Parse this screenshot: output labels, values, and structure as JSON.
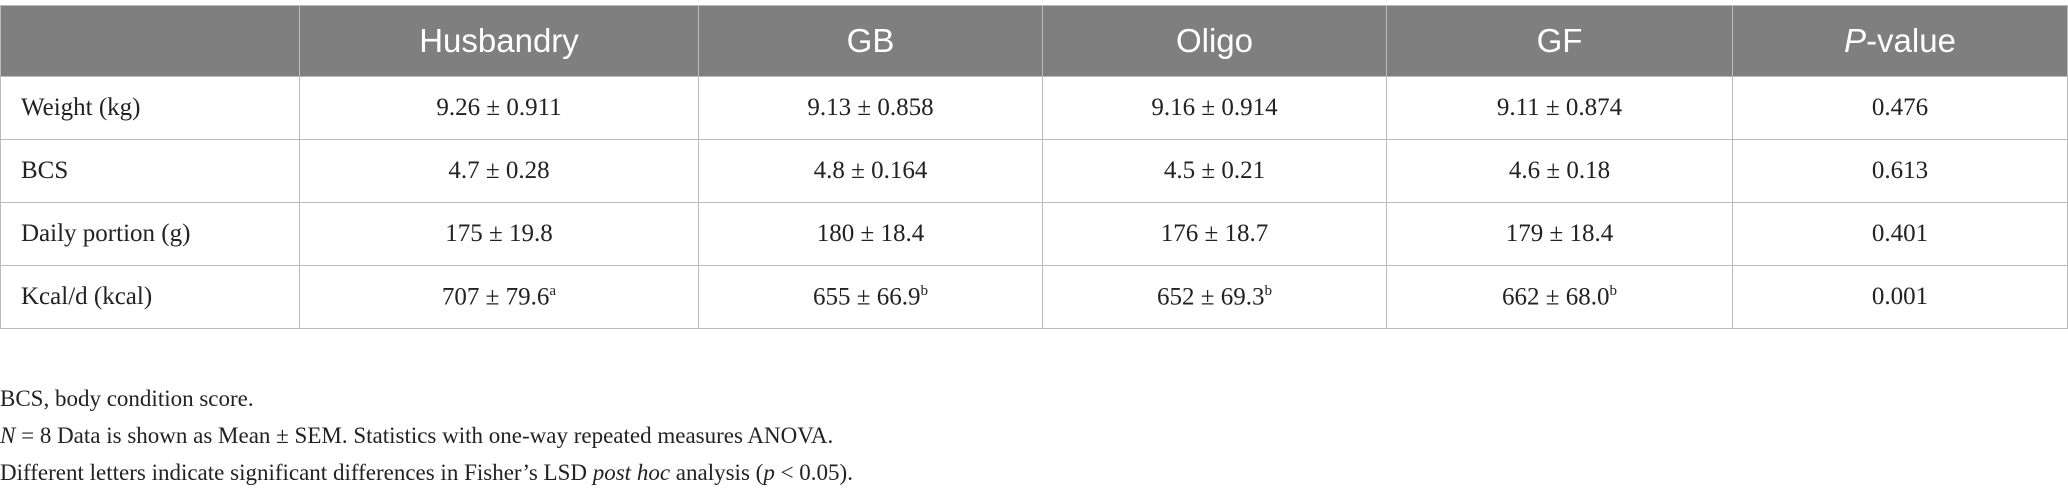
{
  "table": {
    "header": [
      [
        {
          "text": "Husbandry"
        }
      ],
      [
        {
          "text": "GB"
        }
      ],
      [
        {
          "text": "Oligo"
        }
      ],
      [
        {
          "text": "GF"
        }
      ],
      [
        {
          "text": "P",
          "italic": true
        },
        {
          "text": "-value"
        }
      ]
    ],
    "rows": [
      {
        "label": "Weight (kg)",
        "cells": [
          {
            "text": "9.26 ± 0.911"
          },
          {
            "text": "9.13 ± 0.858"
          },
          {
            "text": "9.16 ± 0.914"
          },
          {
            "text": "9.11 ± 0.874"
          },
          {
            "text": "0.476"
          }
        ]
      },
      {
        "label": "BCS",
        "cells": [
          {
            "text": "4.7 ± 0.28"
          },
          {
            "text": "4.8 ± 0.164"
          },
          {
            "text": "4.5 ± 0.21"
          },
          {
            "text": "4.6 ± 0.18"
          },
          {
            "text": "0.613"
          }
        ]
      },
      {
        "label": "Daily portion (g)",
        "cells": [
          {
            "text": "175 ± 19.8"
          },
          {
            "text": "180 ± 18.4"
          },
          {
            "text": "176 ± 18.7"
          },
          {
            "text": "179 ± 18.4"
          },
          {
            "text": "0.401"
          }
        ]
      },
      {
        "label": "Kcal/d (kcal)",
        "cells": [
          {
            "text": "707 ± 79.6",
            "sup": "a"
          },
          {
            "text": "655 ± 66.9",
            "sup": "b"
          },
          {
            "text": "652 ± 69.3",
            "sup": "b"
          },
          {
            "text": "662 ± 68.0",
            "sup": "b"
          },
          {
            "text": "0.001"
          }
        ]
      }
    ]
  },
  "notes": [
    [
      {
        "text": "BCS, body condition score."
      }
    ],
    [
      {
        "text": "N",
        "italic": true
      },
      {
        "text": " = 8 Data is shown as Mean ± SEM. Statistics with one-way repeated measures ANOVA."
      }
    ],
    [
      {
        "text": "Different letters indicate significant differences in Fisher’s LSD "
      },
      {
        "text": "post hoc",
        "italic": true
      },
      {
        "text": " analysis ("
      },
      {
        "text": "p",
        "italic": true
      },
      {
        "text": " < 0.05)."
      }
    ]
  ]
}
